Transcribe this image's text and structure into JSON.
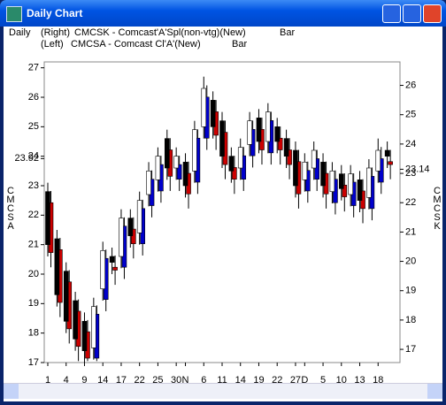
{
  "window_title": "Daily Chart",
  "chart_data": {
    "type": "candlestick",
    "period": "Daily",
    "categories": [
      "1",
      null,
      "4",
      null,
      "9",
      null,
      "14",
      null,
      "17",
      null,
      "22",
      null,
      "25",
      null,
      "30",
      "N",
      null,
      "6",
      null,
      "11",
      null,
      "14",
      null,
      "19",
      null,
      "22",
      null,
      "27",
      "D",
      null,
      "5",
      null,
      "10",
      null,
      "13",
      null,
      "18",
      null
    ],
    "ylim": [
      17,
      27.2
    ],
    "yticks": [
      17,
      18,
      19,
      20,
      21,
      22,
      23,
      23.92,
      24,
      25,
      26,
      27
    ],
    "y2lim": [
      16.55,
      26.8
    ],
    "y2ticks": [
      17,
      18,
      19,
      20,
      21,
      22,
      23,
      23.14,
      24,
      25,
      26
    ],
    "series": [
      {
        "side": "(Right)",
        "name": "CMCSK - Comcast'A'Spl(non-vtg)(New)",
        "style": "Bar",
        "axis_label": "CMCSK",
        "axis": "y2",
        "up_color": "#0000cc",
        "down_color": "#cc0000",
        "open": [
          22.0,
          20.4,
          19.3,
          18.3,
          17.6,
          16.7,
          18.7,
          19.8,
          19.8,
          21.1,
          20.6,
          21.9,
          22.4,
          23.8,
          22.8,
          23.0,
          22.7,
          24.2,
          25.1,
          24.4,
          23.2,
          22.8,
          23.6,
          24.5,
          23.7,
          24.2,
          23.8,
          23.4,
          22.4,
          22.8,
          23.0,
          22.0,
          22.6,
          21.9,
          22.4,
          21.8,
          22.7,
          23.4
        ],
        "high": [
          22.4,
          20.8,
          19.7,
          18.7,
          18.0,
          18.5,
          20.4,
          20.2,
          21.5,
          21.5,
          22.1,
          23.1,
          23.6,
          24.2,
          23.6,
          23.4,
          24.5,
          26.0,
          25.5,
          24.8,
          23.6,
          23.9,
          24.8,
          24.9,
          25.1,
          24.6,
          24.2,
          23.8,
          23.4,
          23.8,
          23.4,
          23.1,
          23.0,
          23.0,
          22.8,
          23.2,
          23.9,
          23.8
        ],
        "low": [
          19.8,
          18.1,
          17.2,
          16.6,
          16.6,
          16.6,
          18.3,
          19.2,
          19.4,
          20.1,
          20.2,
          21.5,
          22.0,
          22.4,
          22.4,
          21.8,
          22.3,
          23.8,
          23.8,
          22.8,
          22.3,
          22.4,
          23.2,
          23.3,
          23.3,
          23.3,
          22.8,
          21.8,
          22.0,
          22.4,
          21.8,
          21.6,
          21.7,
          21.5,
          21.3,
          21.4,
          22.3,
          22.8
        ],
        "close": [
          20.3,
          18.6,
          17.7,
          17.1,
          16.7,
          18.2,
          20.1,
          19.7,
          21.2,
          20.6,
          21.8,
          22.8,
          23.3,
          22.9,
          23.3,
          22.3,
          24.2,
          25.6,
          24.3,
          23.3,
          22.8,
          23.6,
          24.5,
          23.8,
          24.8,
          23.8,
          23.3,
          22.3,
          23.1,
          23.5,
          22.3,
          22.8,
          22.2,
          22.7,
          21.8,
          22.9,
          23.5,
          23.3
        ]
      },
      {
        "side": "(Left)",
        "name": "CMCSA - Comcast Cl'A'(New)",
        "style": "Bar",
        "axis_label": "CMCSA",
        "axis": "y",
        "up_color": "#ffffff",
        "down_color": "#000000",
        "open": [
          22.8,
          21.2,
          20.1,
          19.1,
          18.4,
          17.5,
          19.5,
          20.6,
          20.6,
          21.9,
          21.4,
          22.7,
          23.2,
          24.6,
          23.6,
          23.8,
          23.5,
          25.0,
          25.9,
          25.2,
          24.0,
          23.6,
          24.4,
          25.3,
          24.5,
          25.0,
          24.6,
          24.2,
          23.2,
          23.6,
          23.8,
          22.8,
          23.4,
          22.7,
          23.2,
          22.6,
          23.5,
          24.2
        ],
        "high": [
          23.1,
          21.5,
          20.4,
          19.4,
          18.7,
          19.2,
          21.1,
          20.9,
          22.2,
          22.2,
          22.8,
          23.8,
          24.3,
          24.9,
          24.3,
          24.1,
          25.2,
          26.7,
          26.2,
          25.5,
          24.3,
          24.6,
          25.5,
          25.6,
          25.8,
          25.3,
          24.9,
          24.5,
          24.1,
          24.5,
          24.1,
          23.8,
          23.7,
          23.7,
          23.5,
          23.9,
          24.6,
          24.5
        ],
        "low": [
          20.6,
          18.9,
          18.0,
          17.4,
          17.0,
          17.1,
          19.1,
          20.0,
          20.2,
          20.9,
          21.0,
          22.3,
          22.8,
          23.2,
          23.2,
          22.6,
          23.1,
          24.6,
          24.6,
          23.6,
          23.1,
          23.2,
          24.0,
          24.1,
          24.1,
          24.1,
          23.6,
          22.6,
          22.8,
          23.2,
          22.6,
          22.4,
          22.5,
          22.3,
          22.1,
          22.2,
          23.1,
          23.6
        ],
        "close": [
          21.0,
          19.3,
          18.4,
          17.8,
          17.4,
          18.9,
          20.8,
          20.4,
          21.9,
          21.3,
          22.5,
          23.5,
          24.0,
          23.6,
          24.0,
          23.0,
          24.9,
          26.3,
          25.0,
          24.0,
          23.5,
          24.3,
          25.2,
          24.5,
          25.5,
          24.5,
          24.0,
          23.0,
          23.8,
          24.2,
          23.0,
          23.5,
          22.9,
          23.4,
          22.5,
          23.6,
          24.2,
          24.0
        ]
      }
    ]
  }
}
